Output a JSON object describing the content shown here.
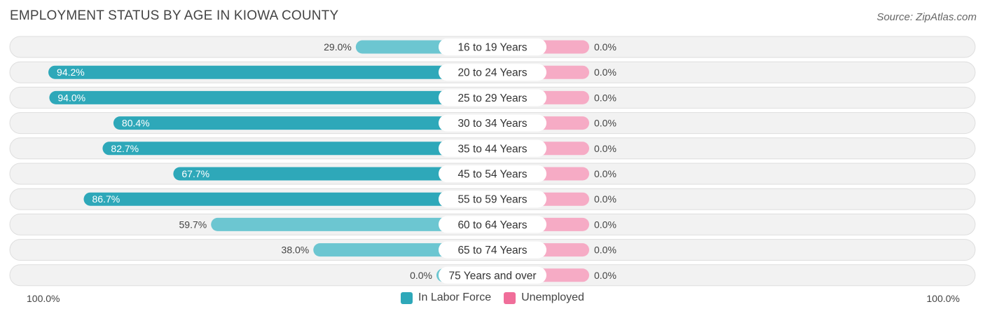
{
  "title": "EMPLOYMENT STATUS BY AGE IN KIOWA COUNTY",
  "source": "Source: ZipAtlas.com",
  "chart_data": {
    "type": "bar",
    "orientation": "horizontal-diverging",
    "categories": [
      "16 to 19 Years",
      "20 to 24 Years",
      "25 to 29 Years",
      "30 to 34 Years",
      "35 to 44 Years",
      "45 to 54 Years",
      "55 to 59 Years",
      "60 to 64 Years",
      "65 to 74 Years",
      "75 Years and over"
    ],
    "series": [
      {
        "name": "In Labor Force",
        "values": [
          29.0,
          94.2,
          94.0,
          80.4,
          82.7,
          67.7,
          86.7,
          59.7,
          38.0,
          0.0
        ],
        "labels": [
          "29.0%",
          "94.2%",
          "94.0%",
          "80.4%",
          "82.7%",
          "67.7%",
          "86.7%",
          "59.7%",
          "38.0%",
          "0.0%"
        ],
        "color": "#2ea8b9",
        "color_light": "#6cc6d1"
      },
      {
        "name": "Unemployed",
        "values": [
          0.0,
          0.0,
          0.0,
          0.0,
          0.0,
          0.0,
          0.0,
          0.0,
          0.0,
          0.0
        ],
        "labels": [
          "0.0%",
          "0.0%",
          "0.0%",
          "0.0%",
          "0.0%",
          "0.0%",
          "0.0%",
          "0.0%",
          "0.0%",
          "0.0%"
        ],
        "color": "#f06e9a",
        "color_light": "#f6abc5"
      }
    ],
    "xlim": [
      -100,
      100
    ],
    "axis_labels": {
      "left": "100.0%",
      "right": "100.0%"
    },
    "legend_position": "bottom-center",
    "grid": false
  }
}
